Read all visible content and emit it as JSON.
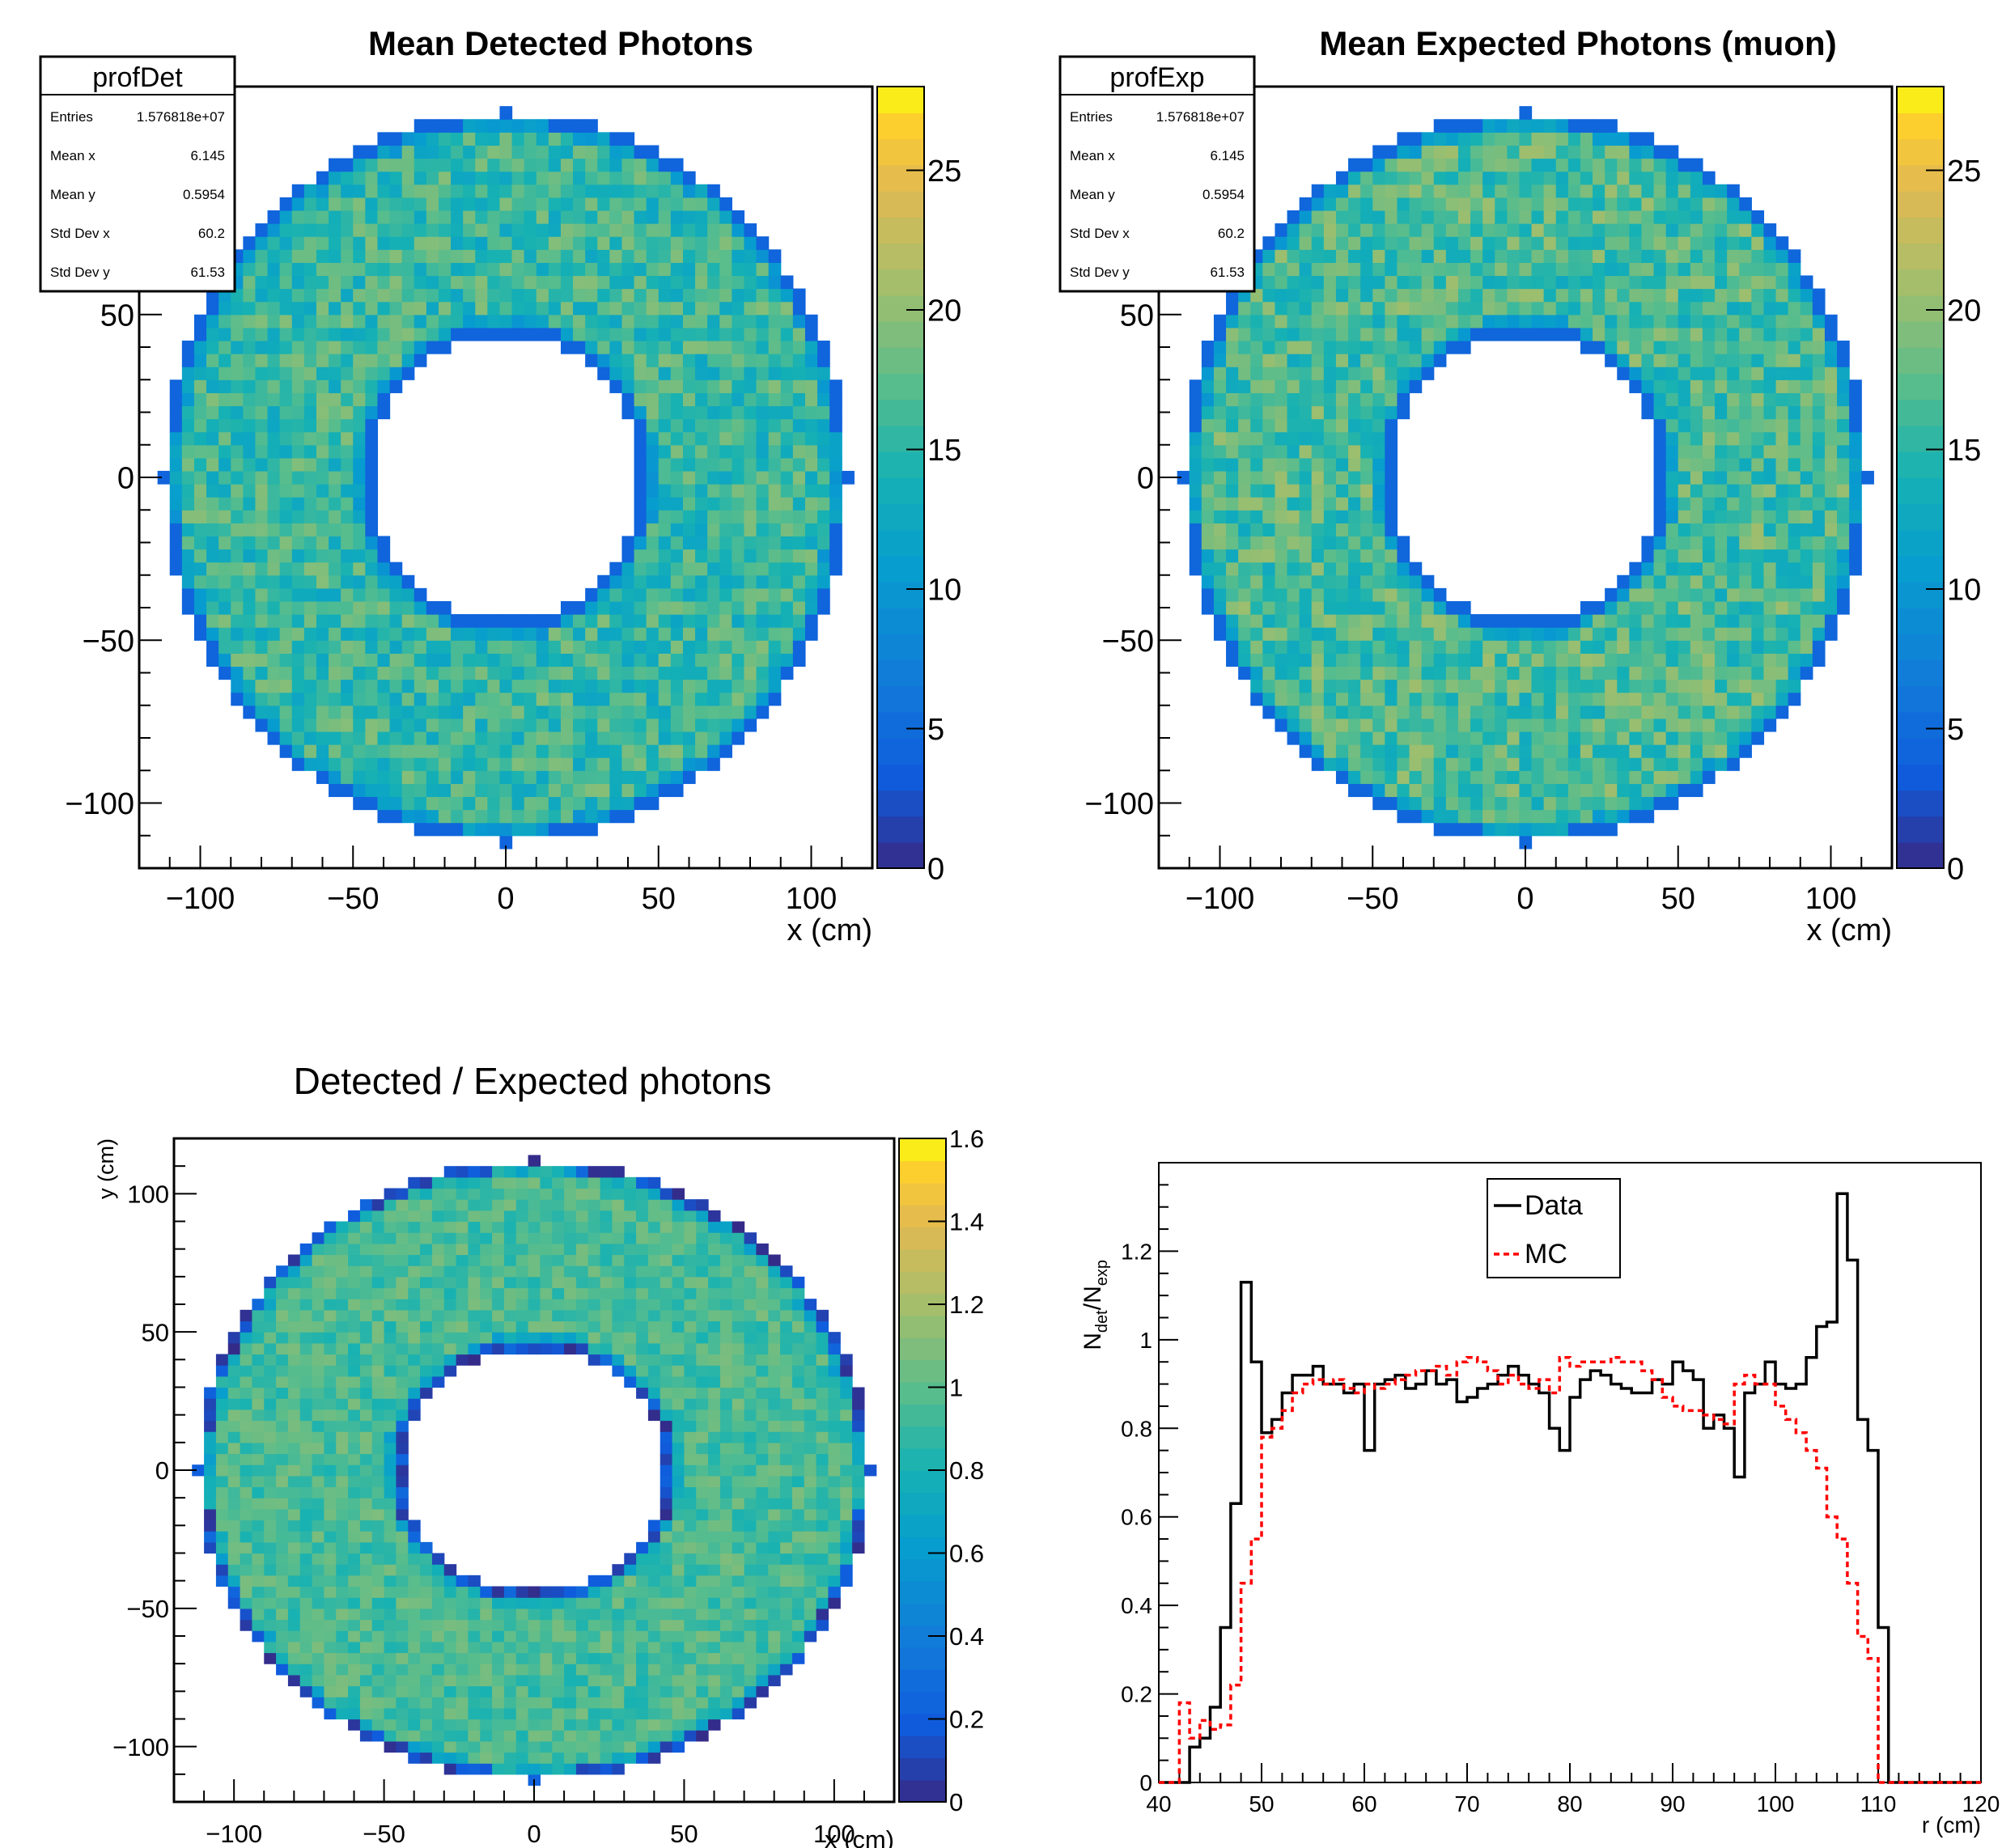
{
  "chart_data": [
    {
      "type": "heatmap",
      "title": "Mean Detected Photons",
      "xlabel": "x (cm)",
      "ylabel": "",
      "xlim": [
        -120,
        120
      ],
      "ylim": [
        -120,
        120
      ],
      "xticks": [
        "−100",
        "−50",
        "0",
        "50",
        "100"
      ],
      "yticks": [
        "−100",
        "−50",
        "0",
        "50"
      ],
      "zlim": [
        0,
        28
      ],
      "zticks": [
        "0",
        "5",
        "10",
        "15",
        "20",
        "25"
      ],
      "ring": {
        "r_inner": 44,
        "r_outer": 112,
        "mean_value": 17
      },
      "stats": {
        "name": "profDet",
        "rows": [
          {
            "label": "Entries",
            "value": "1.576818e+07"
          },
          {
            "label": "Mean x",
            "value": "6.145"
          },
          {
            "label": "Mean y",
            "value": "0.5954"
          },
          {
            "label": "Std Dev x",
            "value": "60.2"
          },
          {
            "label": "Std Dev y",
            "value": "61.53"
          }
        ]
      }
    },
    {
      "type": "heatmap",
      "title": "Mean Expected Photons (muon)",
      "xlabel": "x (cm)",
      "ylabel": "",
      "xlim": [
        -120,
        120
      ],
      "ylim": [
        -120,
        120
      ],
      "xticks": [
        "−100",
        "−50",
        "0",
        "50",
        "100"
      ],
      "yticks": [
        "−100",
        "−50",
        "0",
        "50"
      ],
      "zlim": [
        0,
        28
      ],
      "zticks": [
        "0",
        "5",
        "10",
        "15",
        "20",
        "25"
      ],
      "ring": {
        "r_inner": 44,
        "r_outer": 112,
        "mean_value": 18
      },
      "stats": {
        "name": "profExp",
        "rows": [
          {
            "label": "Entries",
            "value": "1.576818e+07"
          },
          {
            "label": "Mean x",
            "value": "6.145"
          },
          {
            "label": "Mean y",
            "value": "0.5954"
          },
          {
            "label": "Std Dev x",
            "value": "60.2"
          },
          {
            "label": "Std Dev y",
            "value": "61.53"
          }
        ]
      }
    },
    {
      "type": "heatmap",
      "title": "Detected / Expected photons",
      "xlabel": "x (cm)",
      "ylabel": "y (cm)",
      "xlim": [
        -120,
        120
      ],
      "ylim": [
        -120,
        120
      ],
      "xticks": [
        "−100",
        "−50",
        "0",
        "50",
        "100"
      ],
      "yticks": [
        "−100",
        "−50",
        "0",
        "50",
        "100"
      ],
      "zlim": [
        0,
        1.6
      ],
      "zticks": [
        "0",
        "0.2",
        "0.4",
        "0.6",
        "0.8",
        "1",
        "1.2",
        "1.4",
        "1.6"
      ],
      "ring": {
        "r_inner": 44,
        "r_outer": 112,
        "mean_value": 0.95
      }
    },
    {
      "type": "line",
      "title": "",
      "xlabel": "r (cm)",
      "ylabel": "N_det/N_exp",
      "ylabel_main": "N",
      "ylabel_sub1": "det",
      "ylabel_mid": "/N",
      "ylabel_sub2": "exp",
      "xlim": [
        40,
        120
      ],
      "ylim": [
        0,
        1.4
      ],
      "xticks": [
        "40",
        "50",
        "60",
        "70",
        "80",
        "90",
        "100",
        "110",
        "120"
      ],
      "yticks": [
        "0",
        "0.2",
        "0.4",
        "0.6",
        "0.8",
        "1",
        "1.2"
      ],
      "bin_start": 40,
      "bin_width": 1,
      "legend_position": "top-center",
      "series": [
        {
          "name": "Data",
          "color": "#000000",
          "style": "solid",
          "values": [
            0,
            0,
            0,
            0.08,
            0.1,
            0.17,
            0.35,
            0.63,
            1.13,
            0.95,
            0.79,
            0.82,
            0.88,
            0.92,
            0.92,
            0.94,
            0.9,
            0.9,
            0.88,
            0.9,
            0.75,
            0.9,
            0.91,
            0.92,
            0.89,
            0.9,
            0.93,
            0.9,
            0.91,
            0.86,
            0.87,
            0.89,
            0.9,
            0.92,
            0.94,
            0.92,
            0.9,
            0.88,
            0.8,
            0.75,
            0.87,
            0.91,
            0.93,
            0.92,
            0.9,
            0.89,
            0.88,
            0.88,
            0.91,
            0.9,
            0.95,
            0.93,
            0.91,
            0.8,
            0.83,
            0.8,
            0.69,
            0.88,
            0.9,
            0.95,
            0.9,
            0.89,
            0.9,
            0.96,
            1.03,
            1.04,
            1.33,
            1.18,
            0.82,
            0.75,
            0.35,
            0,
            0,
            0,
            0,
            0,
            0,
            0,
            0,
            0
          ]
        },
        {
          "name": "MC",
          "color": "#ff0000",
          "style": "dashed",
          "values": [
            0,
            0,
            0.18,
            0.1,
            0.14,
            0.12,
            0.13,
            0.22,
            0.45,
            0.55,
            0.78,
            0.8,
            0.84,
            0.88,
            0.9,
            0.91,
            0.9,
            0.91,
            0.89,
            0.88,
            0.9,
            0.89,
            0.9,
            0.91,
            0.92,
            0.93,
            0.93,
            0.94,
            0.92,
            0.95,
            0.96,
            0.95,
            0.93,
            0.9,
            0.92,
            0.9,
            0.89,
            0.91,
            0.88,
            0.96,
            0.94,
            0.95,
            0.95,
            0.95,
            0.96,
            0.95,
            0.95,
            0.93,
            0.91,
            0.87,
            0.85,
            0.84,
            0.84,
            0.83,
            0.82,
            0.81,
            0.9,
            0.92,
            0.9,
            0.9,
            0.85,
            0.82,
            0.79,
            0.75,
            0.71,
            0.6,
            0.55,
            0.45,
            0.33,
            0.28,
            0,
            0,
            0,
            0,
            0,
            0,
            0,
            0,
            0,
            0
          ]
        }
      ]
    }
  ]
}
